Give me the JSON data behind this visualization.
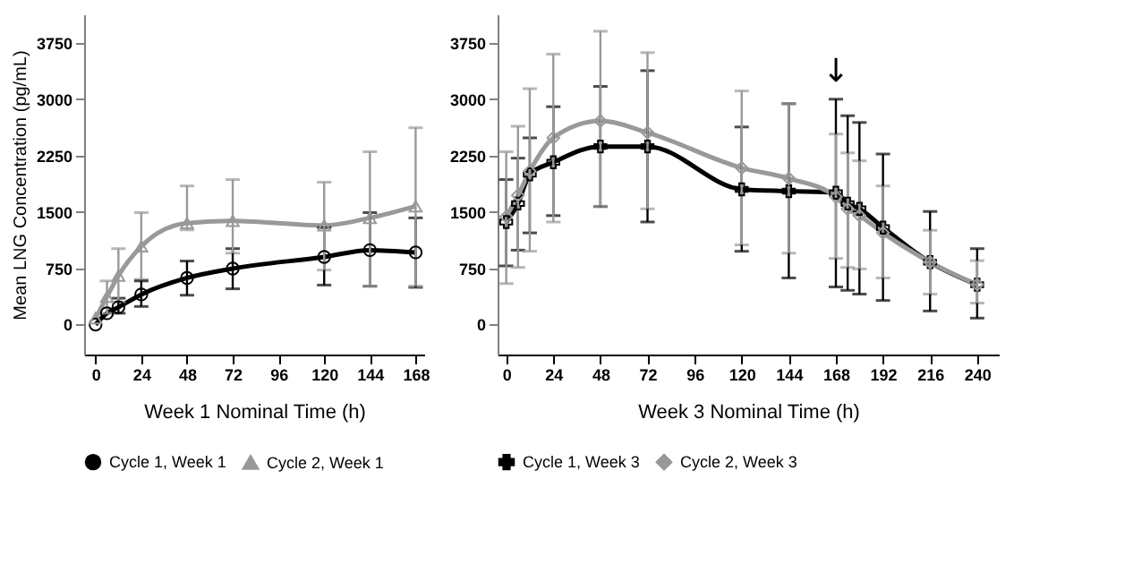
{
  "chart_data": [
    {
      "type": "line",
      "xlabel": "Week 1 Nominal Time (h)",
      "ylabel": "Mean LNG Concentration (pg/mL)",
      "xlim": [
        -6,
        172.5
      ],
      "xticks": [
        0,
        24,
        48,
        72,
        96,
        120,
        144,
        168
      ],
      "ylim": [
        -400,
        4130
      ],
      "yticks": [
        0,
        750,
        1500,
        2250,
        3000,
        3750
      ],
      "grid": false,
      "legend": "bottom",
      "series": [
        {
          "name": "Cycle 1, Week 1",
          "color": "#000000",
          "marker": "circle",
          "x": [
            0,
            6,
            12,
            24,
            48,
            72,
            120,
            144,
            168
          ],
          "values": [
            0,
            150,
            230,
            400,
            620,
            745,
            900,
            990,
            960
          ],
          "errors": [
            null,
            null,
            [
              150,
              350
            ],
            [
              240,
              580
            ],
            [
              390,
              845
            ],
            [
              475,
              1010
            ],
            [
              525,
              1290
            ],
            [
              510,
              1490
            ],
            [
              495,
              1420
            ]
          ]
        },
        {
          "name": "Cycle 2, Week 1",
          "color": "#999999",
          "marker": "triangle",
          "x": [
            0,
            6,
            12,
            24,
            48,
            72,
            120,
            144,
            168
          ],
          "values": [
            85,
            370,
            650,
            1040,
            1350,
            1380,
            1320,
            1420,
            1575
          ],
          "errors": [
            null,
            [
              150,
              580
            ],
            [
              300,
              1010
            ],
            [
              600,
              1490
            ],
            [
              1260,
              1845
            ],
            [
              950,
              1930
            ],
            [
              725,
              1895
            ],
            [
              510,
              2300
            ],
            [
              510,
              2620
            ]
          ]
        }
      ]
    },
    {
      "type": "line",
      "xlabel": "Week 3 Nominal Time (h)",
      "xlim": [
        -4.4,
        251
      ],
      "xticks": [
        0,
        24,
        48,
        72,
        96,
        120,
        144,
        168,
        192,
        216,
        240
      ],
      "ylim": [
        -400,
        4130
      ],
      "yticks": [
        0,
        750,
        1500,
        2250,
        3000,
        3750
      ],
      "grid": false,
      "legend": "bottom",
      "annotations": [
        {
          "text": "↓",
          "x": 168,
          "y": 3000
        }
      ],
      "series": [
        {
          "name": "Cycle 1, Week 3",
          "color": "#000000",
          "marker": "cross",
          "x": [
            0,
            6,
            12,
            24,
            48,
            72,
            120,
            144,
            168,
            174,
            180,
            192,
            216,
            240
          ],
          "values": [
            1365,
            1610,
            2000,
            2160,
            2370,
            2370,
            1800,
            1775,
            1755,
            1610,
            1540,
            1290,
            830,
            530
          ],
          "errors": [
            [
              780,
              1930
            ],
            [
              990,
              2215
            ],
            [
              1220,
              2485
            ],
            [
              1450,
              2900
            ],
            [
              1570,
              3170
            ],
            [
              1365,
              3380
            ],
            [
              975,
              2630
            ],
            [
              620,
              2940
            ],
            [
              500,
              3000
            ],
            [
              455,
              2780
            ],
            [
              405,
              2690
            ],
            [
              320,
              2270
            ],
            [
              180,
              1505
            ],
            [
              85,
              1010
            ]
          ]
        },
        {
          "name": "Cycle 2, Week 3",
          "color": "#999999",
          "marker": "diamond",
          "x": [
            0,
            6,
            12,
            24,
            48,
            72,
            120,
            144,
            168,
            174,
            180,
            192,
            216,
            240
          ],
          "values": [
            1435,
            1720,
            2040,
            2485,
            2710,
            2555,
            2085,
            1945,
            1700,
            1540,
            1450,
            1220,
            830,
            530
          ],
          "errors": [
            [
              545,
              2300
            ],
            [
              760,
              2640
            ],
            [
              975,
              3140
            ],
            [
              1365,
              3600
            ],
            [
              1575,
              3905
            ],
            [
              1540,
              3620
            ],
            [
              1060,
              3110
            ],
            [
              950,
              2940
            ],
            [
              880,
              2535
            ],
            [
              760,
              2285
            ],
            [
              740,
              2180
            ],
            [
              620,
              1845
            ],
            [
              405,
              1255
            ],
            [
              285,
              850
            ]
          ]
        }
      ]
    }
  ]
}
